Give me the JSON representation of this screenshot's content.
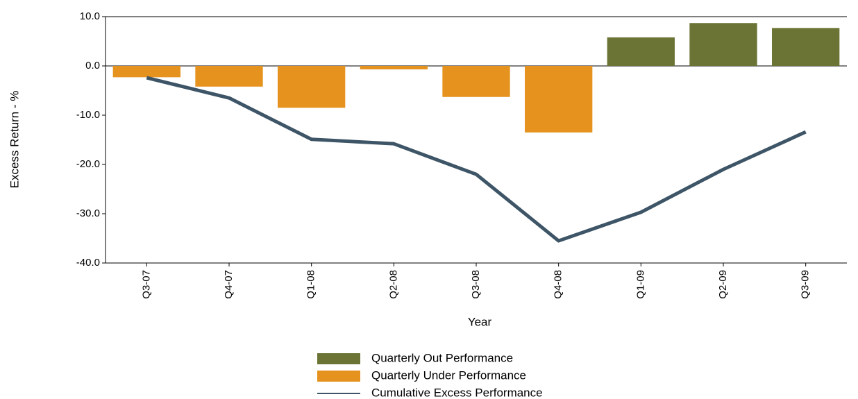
{
  "chart_data": {
    "type": "bar-line",
    "x_label": "Year",
    "y_label": "Excess Return - %",
    "categories": [
      "Q3-07",
      "Q4-07",
      "Q1-08",
      "Q2-08",
      "Q3-08",
      "Q4-08",
      "Q1-09",
      "Q2-09",
      "Q3-09"
    ],
    "series": [
      {
        "name": "Quarterly Out Performance",
        "kind": "bar",
        "color": "#6b7434",
        "values": [
          null,
          null,
          null,
          null,
          null,
          null,
          5.8,
          8.7,
          7.7
        ]
      },
      {
        "name": "Quarterly Under Performance",
        "kind": "bar",
        "color": "#e5921f",
        "values": [
          -2.3,
          -4.2,
          -8.5,
          -0.7,
          -6.3,
          -13.5,
          null,
          null,
          null
        ]
      },
      {
        "name": "Cumulative Excess Performance",
        "kind": "line",
        "color": "#3d5566",
        "values": [
          -2.4,
          -6.5,
          -14.9,
          -15.8,
          -22.0,
          -35.5,
          -29.7,
          -21.0,
          -13.4
        ]
      }
    ],
    "ylim": [
      -40,
      10
    ],
    "yticks": [
      {
        "value": -40,
        "label": "-40.0"
      },
      {
        "value": -30,
        "label": "-30.0"
      },
      {
        "value": -20,
        "label": "-20.0"
      },
      {
        "value": -10,
        "label": "-10.0"
      },
      {
        "value": 0,
        "label": "0.0"
      },
      {
        "value": 10,
        "label": "10.0"
      }
    ],
    "grid": false,
    "legend": "bottom"
  }
}
